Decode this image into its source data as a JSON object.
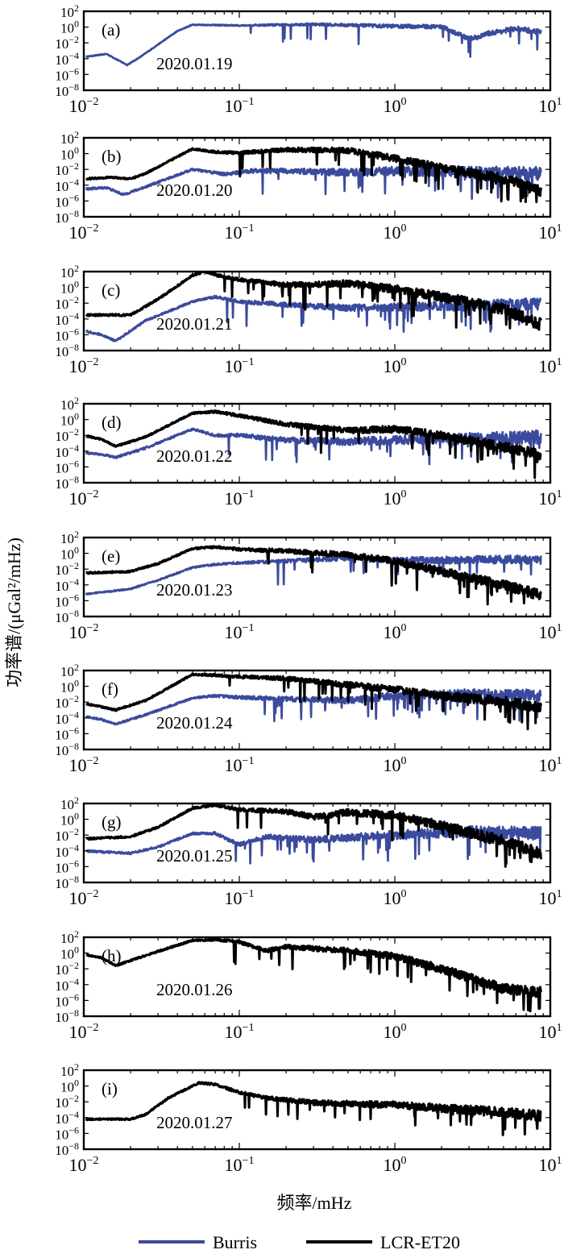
{
  "chart_data": {
    "type": "line",
    "ylabel": "功率谱/(μGal²/mHz)",
    "xlabel": "频率/mHz",
    "xscale": "log",
    "yscale": "log",
    "xlim": [
      0.01,
      10
    ],
    "ylim": [
      1e-08,
      100
    ],
    "x_ticks": [
      0.01,
      0.1,
      1,
      10
    ],
    "y_ticks": [
      1e-08,
      1e-06,
      0.0001,
      0.01,
      1,
      100
    ],
    "x_tick_base": "10",
    "x_tick_exponents": [
      "−2",
      "−1",
      "0",
      "1"
    ],
    "y_tick_base": "10",
    "y_tick_exponents": [
      "−8",
      "−6",
      "−4",
      "−2",
      "0",
      "2"
    ],
    "legend": {
      "placement": "bottom",
      "entries": [
        {
          "name": "Burris",
          "color": "#3a4a9c"
        },
        {
          "name": "LCR-ET20",
          "color": "#000000"
        }
      ]
    },
    "panels": [
      {
        "label": "(a)",
        "date": "2020.01.19",
        "series": [
          {
            "name": "Burris",
            "color": "#3a4a9c",
            "anchors": [
              [
                0.01,
                -3.8
              ],
              [
                0.014,
                -3.4
              ],
              [
                0.019,
                -4.8
              ],
              [
                0.023,
                -3.8
              ],
              [
                0.04,
                -0.5
              ],
              [
                0.05,
                0.3
              ],
              [
                0.1,
                0.2
              ],
              [
                0.3,
                0.35
              ],
              [
                1,
                0.1
              ],
              [
                2,
                0.05
              ],
              [
                3,
                -1.5
              ],
              [
                3.5,
                -1.2
              ],
              [
                4,
                -0.8
              ],
              [
                6,
                -0.2
              ],
              [
                9,
                -0.7
              ]
            ],
            "noise": 0.35,
            "dips": 0.02
          }
        ]
      },
      {
        "label": "(b)",
        "date": "2020.01.20",
        "series": [
          {
            "name": "Burris",
            "color": "#3a4a9c",
            "anchors": [
              [
                0.01,
                -4.5
              ],
              [
                0.014,
                -4.3
              ],
              [
                0.018,
                -5.2
              ],
              [
                0.025,
                -4.2
              ],
              [
                0.05,
                -2
              ],
              [
                0.08,
                -2.6
              ],
              [
                0.12,
                -2.2
              ],
              [
                0.2,
                -2.2
              ],
              [
                0.5,
                -2.4
              ],
              [
                1,
                -2.2
              ],
              [
                3,
                -2.3
              ],
              [
                9,
                -2.6
              ]
            ],
            "noise": 0.9,
            "dips": 0.06
          },
          {
            "name": "LCR-ET20",
            "color": "#000000",
            "anchors": [
              [
                0.01,
                -3.2
              ],
              [
                0.015,
                -3
              ],
              [
                0.02,
                -3.2
              ],
              [
                0.025,
                -2.5
              ],
              [
                0.05,
                0.6
              ],
              [
                0.07,
                0.2
              ],
              [
                0.1,
                0.1
              ],
              [
                0.2,
                0.5
              ],
              [
                0.5,
                0.4
              ],
              [
                1,
                -0.6
              ],
              [
                2,
                -1.8
              ],
              [
                5,
                -3.2
              ],
              [
                9,
                -4.8
              ]
            ],
            "noise": 0.7,
            "dips": 0.05
          }
        ]
      },
      {
        "label": "(c)",
        "date": "2020.01.21",
        "series": [
          {
            "name": "Burris",
            "color": "#3a4a9c",
            "anchors": [
              [
                0.01,
                -5.5
              ],
              [
                0.013,
                -6
              ],
              [
                0.016,
                -6.8
              ],
              [
                0.025,
                -4.2
              ],
              [
                0.05,
                -1.8
              ],
              [
                0.07,
                -1.2
              ],
              [
                0.1,
                -1.8
              ],
              [
                0.2,
                -2.2
              ],
              [
                0.5,
                -2.6
              ],
              [
                1,
                -2.5
              ],
              [
                3,
                -2.3
              ],
              [
                9,
                -2.1
              ]
            ],
            "noise": 0.8,
            "dips": 0.05
          },
          {
            "name": "LCR-ET20",
            "color": "#000000",
            "anchors": [
              [
                0.01,
                -3.5
              ],
              [
                0.02,
                -3.5
              ],
              [
                0.03,
                -1.5
              ],
              [
                0.05,
                1.5
              ],
              [
                0.06,
                2
              ],
              [
                0.08,
                1.3
              ],
              [
                0.1,
                1
              ],
              [
                0.2,
                0.3
              ],
              [
                0.5,
                0.5
              ],
              [
                1,
                -0.2
              ],
              [
                2,
                -1.2
              ],
              [
                5,
                -2.8
              ],
              [
                9,
                -4.8
              ]
            ],
            "noise": 0.8,
            "dips": 0.05
          }
        ]
      },
      {
        "label": "(d)",
        "date": "2020.01.22",
        "series": [
          {
            "name": "Burris",
            "color": "#3a4a9c",
            "anchors": [
              [
                0.01,
                -4.2
              ],
              [
                0.013,
                -4.4
              ],
              [
                0.016,
                -4.8
              ],
              [
                0.025,
                -3.6
              ],
              [
                0.05,
                -1.2
              ],
              [
                0.07,
                -2
              ],
              [
                0.1,
                -2
              ],
              [
                0.2,
                -2.6
              ],
              [
                0.5,
                -2.8
              ],
              [
                1,
                -2.6
              ],
              [
                3,
                -2.4
              ],
              [
                9,
                -2.2
              ]
            ],
            "noise": 0.9,
            "dips": 0.05
          },
          {
            "name": "LCR-ET20",
            "color": "#000000",
            "anchors": [
              [
                0.01,
                -2
              ],
              [
                0.013,
                -2.5
              ],
              [
                0.016,
                -3.4
              ],
              [
                0.025,
                -2.2
              ],
              [
                0.05,
                0.8
              ],
              [
                0.07,
                1
              ],
              [
                0.1,
                0.5
              ],
              [
                0.2,
                -0.6
              ],
              [
                0.5,
                -1.4
              ],
              [
                1,
                -1.2
              ],
              [
                2,
                -2
              ],
              [
                5,
                -3.5
              ],
              [
                9,
                -4.5
              ]
            ],
            "noise": 0.7,
            "dips": 0.05
          }
        ]
      },
      {
        "label": "(e)",
        "date": "2020.01.23",
        "series": [
          {
            "name": "Burris",
            "color": "#3a4a9c",
            "anchors": [
              [
                0.01,
                -5.2
              ],
              [
                0.015,
                -4.8
              ],
              [
                0.02,
                -4.5
              ],
              [
                0.03,
                -3.4
              ],
              [
                0.05,
                -1.8
              ],
              [
                0.07,
                -1.4
              ],
              [
                0.1,
                -1.2
              ],
              [
                0.2,
                -1
              ],
              [
                0.5,
                -0.6
              ],
              [
                1,
                -0.9
              ],
              [
                3,
                -0.8
              ],
              [
                9,
                -0.8
              ]
            ],
            "noise": 0.6,
            "dips": 0.03
          },
          {
            "name": "LCR-ET20",
            "color": "#000000",
            "anchors": [
              [
                0.01,
                -2.5
              ],
              [
                0.02,
                -2.3
              ],
              [
                0.03,
                -1.3
              ],
              [
                0.05,
                0.6
              ],
              [
                0.07,
                0.8
              ],
              [
                0.1,
                0.5
              ],
              [
                0.2,
                0.3
              ],
              [
                0.5,
                -0.2
              ],
              [
                1,
                -1
              ],
              [
                2,
                -2.3
              ],
              [
                5,
                -4
              ],
              [
                9,
                -5.4
              ]
            ],
            "noise": 0.7,
            "dips": 0.04
          }
        ]
      },
      {
        "label": "(f)",
        "date": "2020.01.24",
        "series": [
          {
            "name": "Burris",
            "color": "#3a4a9c",
            "anchors": [
              [
                0.01,
                -3.8
              ],
              [
                0.013,
                -4.2
              ],
              [
                0.016,
                -4.8
              ],
              [
                0.025,
                -3.6
              ],
              [
                0.05,
                -1.5
              ],
              [
                0.07,
                -1.2
              ],
              [
                0.1,
                -1.4
              ],
              [
                0.2,
                -1.6
              ],
              [
                0.5,
                -1.8
              ],
              [
                1,
                -1.2
              ],
              [
                3,
                -1
              ],
              [
                9,
                -1.2
              ]
            ],
            "noise": 0.8,
            "dips": 0.04
          },
          {
            "name": "LCR-ET20",
            "color": "#000000",
            "anchors": [
              [
                0.01,
                -2.2
              ],
              [
                0.013,
                -2.6
              ],
              [
                0.016,
                -3
              ],
              [
                0.025,
                -1.8
              ],
              [
                0.05,
                1.5
              ],
              [
                0.07,
                1.4
              ],
              [
                0.1,
                1.2
              ],
              [
                0.2,
                1
              ],
              [
                0.5,
                0.2
              ],
              [
                1,
                -0.4
              ],
              [
                2,
                -1.2
              ],
              [
                5,
                -1.9
              ],
              [
                9,
                -2.6
              ]
            ],
            "noise": 0.7,
            "dips": 0.05
          }
        ]
      },
      {
        "label": "(g)",
        "date": "2020.01.25",
        "series": [
          {
            "name": "Burris",
            "color": "#3a4a9c",
            "anchors": [
              [
                0.01,
                -4
              ],
              [
                0.02,
                -4.3
              ],
              [
                0.03,
                -3.5
              ],
              [
                0.05,
                -1.8
              ],
              [
                0.07,
                -1.8
              ],
              [
                0.1,
                -3.2
              ],
              [
                0.15,
                -2.2
              ],
              [
                0.3,
                -2.6
              ],
              [
                1,
                -2
              ],
              [
                3,
                -1.6
              ],
              [
                9,
                -1.8
              ]
            ],
            "noise": 0.9,
            "dips": 0.05
          },
          {
            "name": "LCR-ET20",
            "color": "#000000",
            "anchors": [
              [
                0.01,
                -2.5
              ],
              [
                0.02,
                -2.2
              ],
              [
                0.03,
                -1
              ],
              [
                0.05,
                1.4
              ],
              [
                0.07,
                1.8
              ],
              [
                0.1,
                1.2
              ],
              [
                0.2,
                1
              ],
              [
                0.3,
                0.3
              ],
              [
                0.5,
                0.9
              ],
              [
                1,
                0.5
              ],
              [
                2,
                -0.8
              ],
              [
                5,
                -2.8
              ],
              [
                9,
                -4.5
              ]
            ],
            "noise": 0.8,
            "dips": 0.06
          }
        ]
      },
      {
        "label": "(h)",
        "date": "2020.01.26",
        "series": [
          {
            "name": "LCR-ET20",
            "color": "#000000",
            "anchors": [
              [
                0.01,
                -0.2
              ],
              [
                0.013,
                -0.6
              ],
              [
                0.016,
                -1.6
              ],
              [
                0.025,
                -0.3
              ],
              [
                0.05,
                1.6
              ],
              [
                0.07,
                1.7
              ],
              [
                0.1,
                1.4
              ],
              [
                0.15,
                0.3
              ],
              [
                0.2,
                0.8
              ],
              [
                0.5,
                0.3
              ],
              [
                1,
                -0.4
              ],
              [
                2,
                -2
              ],
              [
                5,
                -4.5
              ],
              [
                9,
                -5
              ]
            ],
            "noise": 0.7,
            "dips": 0.05
          }
        ]
      },
      {
        "label": "(i)",
        "date": "2020.01.27",
        "series": [
          {
            "name": "LCR-ET20",
            "color": "#000000",
            "anchors": [
              [
                0.01,
                -4.2
              ],
              [
                0.02,
                -4.2
              ],
              [
                0.025,
                -3.6
              ],
              [
                0.035,
                -1.5
              ],
              [
                0.055,
                0.4
              ],
              [
                0.07,
                0.2
              ],
              [
                0.1,
                -0.8
              ],
              [
                0.15,
                -1.5
              ],
              [
                0.3,
                -2.1
              ],
              [
                1,
                -2.4
              ],
              [
                3,
                -3
              ],
              [
                9,
                -3.8
              ]
            ],
            "noise": 0.7,
            "dips": 0.04
          }
        ]
      }
    ]
  }
}
